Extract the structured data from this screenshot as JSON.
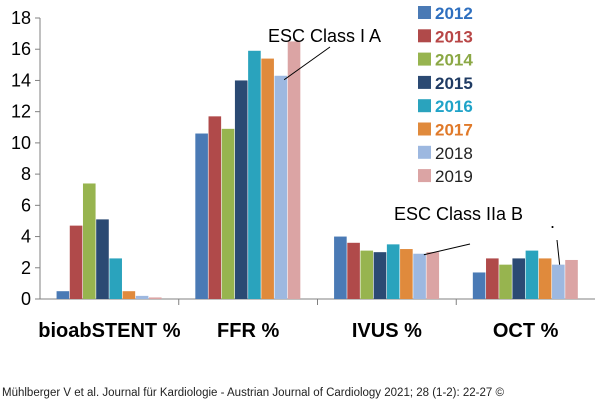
{
  "chart_data": {
    "type": "bar",
    "title": "",
    "xlabel": "",
    "ylabel": "",
    "ylim": [
      0,
      18
    ],
    "yticks": [
      0,
      2,
      4,
      6,
      8,
      10,
      12,
      14,
      16,
      18
    ],
    "grid": false,
    "legend_position": "right",
    "categories": [
      "bioabSTENT %",
      "FFR %",
      "IVUS %",
      "OCT %"
    ],
    "series": [
      {
        "name": "2012",
        "color": "#4a7ab5",
        "legend_color": "#2e6fbf",
        "values": [
          0.5,
          10.6,
          4.0,
          1.7
        ]
      },
      {
        "name": "2013",
        "color": "#b04a4a",
        "legend_color": "#b84646",
        "values": [
          4.7,
          11.7,
          3.6,
          2.6
        ]
      },
      {
        "name": "2014",
        "color": "#97b44f",
        "legend_color": "#8ba845",
        "values": [
          7.4,
          10.9,
          3.1,
          2.2
        ]
      },
      {
        "name": "2015",
        "color": "#2b4a73",
        "legend_color": "#1f3b63",
        "values": [
          5.1,
          14.0,
          3.0,
          2.6
        ]
      },
      {
        "name": "2016",
        "color": "#2aa3bd",
        "legend_color": "#1fa3c8",
        "values": [
          2.6,
          15.9,
          3.5,
          3.1
        ]
      },
      {
        "name": "2017",
        "color": "#e08a3c",
        "legend_color": "#e07a2a",
        "values": [
          0.5,
          15.4,
          3.2,
          2.6
        ]
      },
      {
        "name": "2018",
        "color": "#9db8e0",
        "legend_color": "#222222",
        "values": [
          0.2,
          14.3,
          2.9,
          2.2
        ]
      },
      {
        "name": "2019",
        "color": "#dba4a4",
        "legend_color": "#222222",
        "values": [
          0.1,
          16.5,
          3.0,
          2.5
        ]
      }
    ],
    "annotations": [
      {
        "text": "ESC  Class I  A",
        "points_to": "FFR % 2018"
      },
      {
        "text": "ESC Class IIa  B",
        "points_to": "IVUS % 2018"
      },
      {
        "text": ".",
        "points_to": "OCT % 2018"
      }
    ]
  },
  "citation": "Mühlberger V et al. Journal für Kardiologie - Austrian Journal of Cardiology 2021; 28 (1-2): 22-27 ©"
}
